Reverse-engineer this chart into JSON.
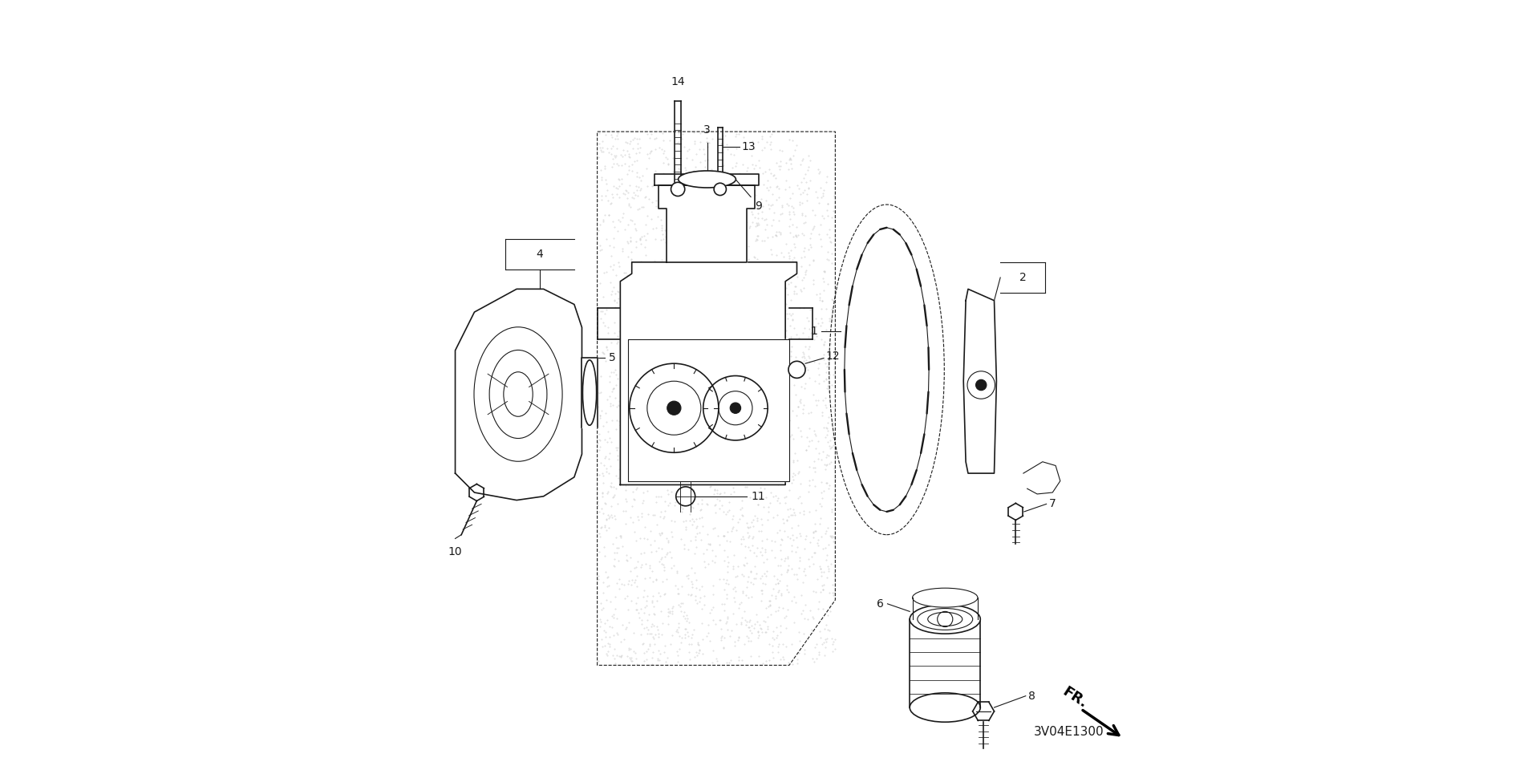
{
  "bg_color": "#ffffff",
  "line_color": "#1a1a1a",
  "diagram_code": "3V04E1300",
  "lw_main": 1.2,
  "lw_thin": 0.8,
  "stipple_color": "#cccccc",
  "fr_text": "FR.",
  "label_fontsize": 10,
  "code_fontsize": 11
}
